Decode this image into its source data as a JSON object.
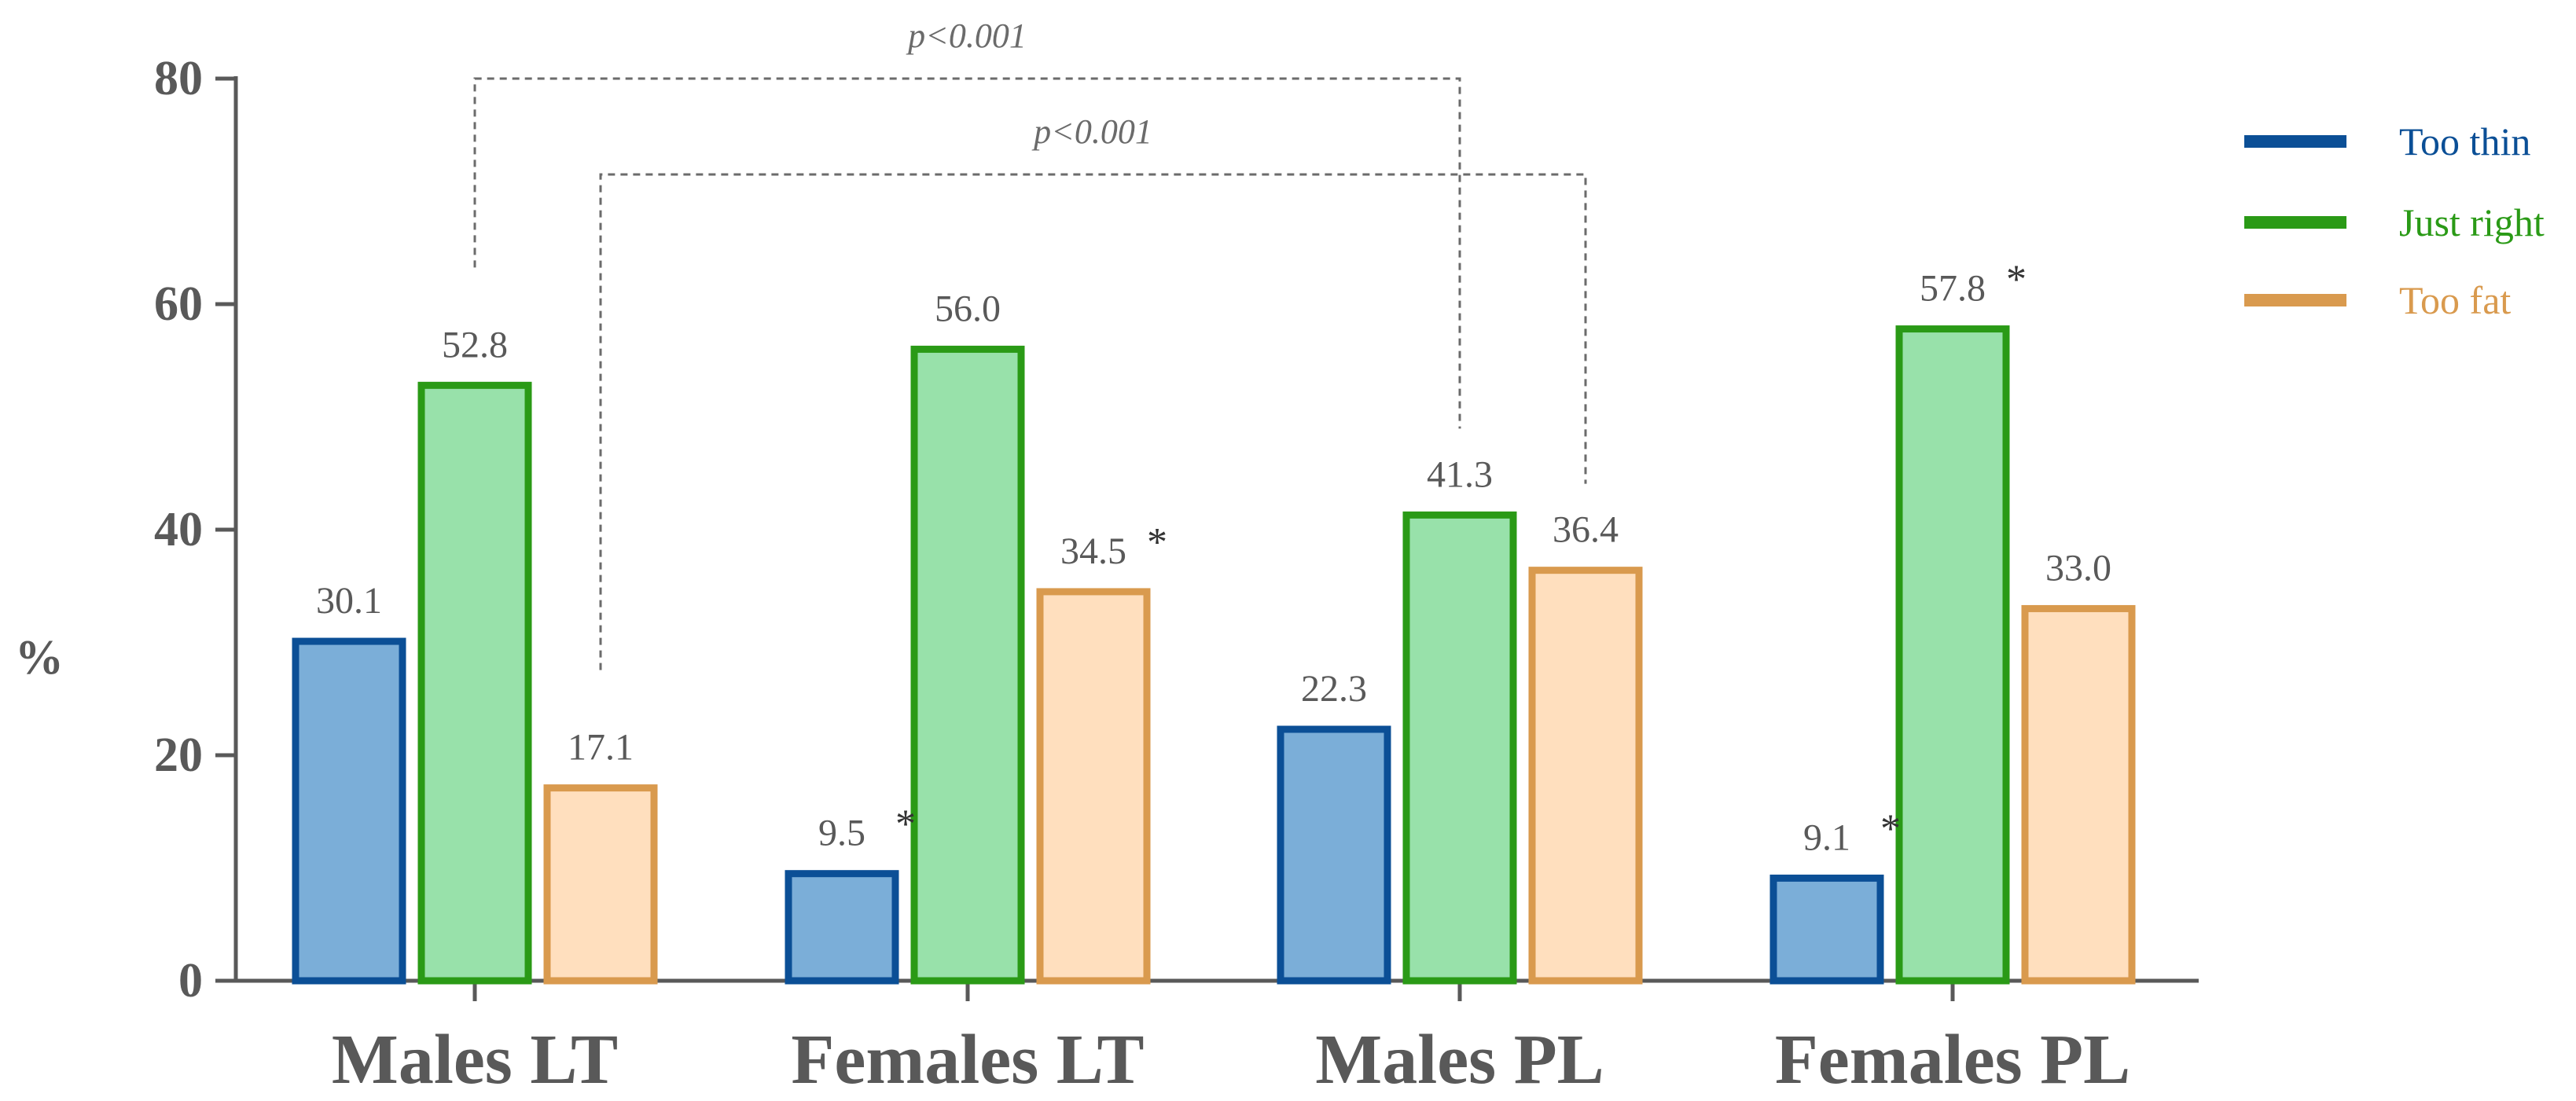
{
  "chart_data": {
    "type": "bar",
    "ylabel": "%",
    "ylim": [
      0,
      80
    ],
    "yticks": [
      "0",
      "20",
      "40",
      "60",
      "80"
    ],
    "categories": [
      "Males LT",
      "Females LT",
      "Males PL",
      "Females PL"
    ],
    "series": [
      {
        "name": "Too thin",
        "values": [
          30.1,
          9.5,
          22.3,
          9.1
        ],
        "labels": [
          "30.1",
          "9.5",
          "22.3",
          "9.1"
        ],
        "significant": [
          false,
          true,
          false,
          true
        ],
        "stroke": "#0b4f96",
        "fill": "#7baed8"
      },
      {
        "name": "Just right",
        "values": [
          52.8,
          56.0,
          41.3,
          57.8
        ],
        "labels": [
          "52.8",
          "56.0",
          "41.3",
          "57.8"
        ],
        "significant": [
          false,
          false,
          false,
          true
        ],
        "stroke": "#2a9a16",
        "fill": "#98e1aa"
      },
      {
        "name": "Too fat",
        "values": [
          17.1,
          34.5,
          36.4,
          33.0
        ],
        "labels": [
          "17.1",
          "34.5",
          "36.4",
          "33.0"
        ],
        "significant": [
          false,
          true,
          false,
          false
        ],
        "stroke": "#d99a4e",
        "fill": "#ffdfbe"
      }
    ],
    "significance_marker": "*",
    "comparisons": [
      {
        "label": "p<0.001",
        "series_index": 1,
        "from_category": 0,
        "to_category": 2,
        "bracket_level": 80
      },
      {
        "label": "p<0.001",
        "series_index": 2,
        "from_category": 0,
        "to_category": 2,
        "bracket_level": 71.5
      }
    ],
    "legend": {
      "position": "top-right"
    },
    "grid": false
  }
}
